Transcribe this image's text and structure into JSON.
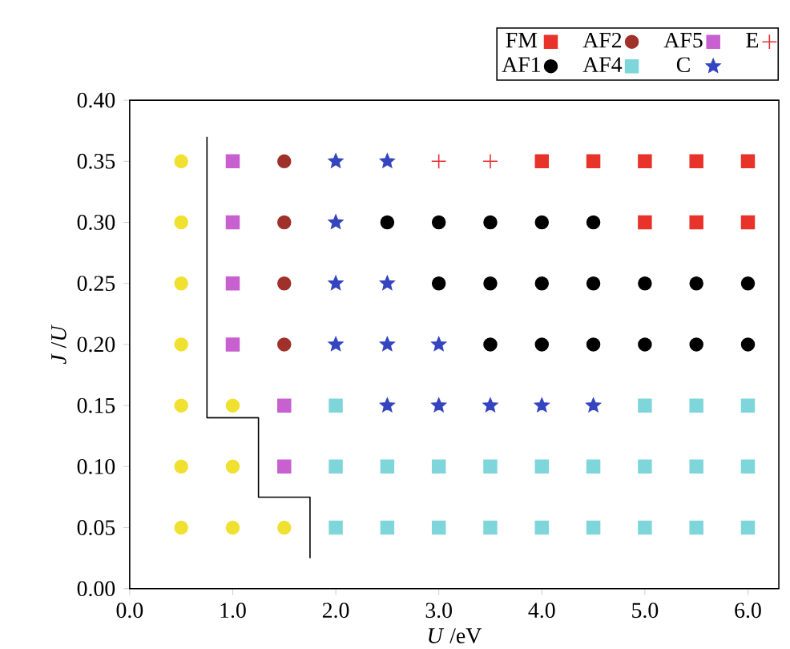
{
  "chart_data": {
    "type": "scatter",
    "xlabel": "*U* /eV",
    "ylabel": "*J* /*U*",
    "legend": "top",
    "xlim": [
      0,
      6.3
    ],
    "ylim": [
      0,
      0.4
    ],
    "xticks": [
      {
        "value": 0,
        "label": "0.0"
      },
      {
        "value": 1,
        "label": "1.0"
      },
      {
        "value": 2,
        "label": "2.0"
      },
      {
        "value": 3,
        "label": "3.0"
      },
      {
        "value": 4,
        "label": "4.0"
      },
      {
        "value": 5,
        "label": "5.0"
      },
      {
        "value": 6,
        "label": "6.0"
      }
    ],
    "yticks": [
      {
        "value": 0,
        "label": "0.00"
      },
      {
        "value": 0.05,
        "label": "0.05"
      },
      {
        "value": 0.1,
        "label": "0.10"
      },
      {
        "value": 0.15,
        "label": "0.15"
      },
      {
        "value": 0.2,
        "label": "0.20"
      },
      {
        "value": 0.25,
        "label": "0.25"
      },
      {
        "value": 0.3,
        "label": "0.30"
      },
      {
        "value": 0.35,
        "label": "0.35"
      },
      {
        "value": 0.4,
        "label": "0.40"
      }
    ],
    "series": [
      {
        "name": "FM",
        "color": "#e8332a",
        "marker": "square",
        "x": [
          4.0,
          4.5,
          5.0,
          5.5,
          6.0,
          5.0,
          5.5,
          6.0
        ],
        "values": [
          0.35,
          0.35,
          0.35,
          0.35,
          0.35,
          0.3,
          0.3,
          0.3
        ]
      },
      {
        "name": "AF2",
        "color": "#a0302a",
        "marker": "circle",
        "x": [
          1.5,
          1.5,
          1.5,
          1.5
        ],
        "values": [
          0.35,
          0.3,
          0.25,
          0.2
        ]
      },
      {
        "name": "AF5",
        "color": "#c860d0",
        "marker": "square",
        "x": [
          1.0,
          1.0,
          1.0,
          1.0,
          1.5,
          1.5
        ],
        "values": [
          0.35,
          0.3,
          0.25,
          0.2,
          0.15,
          0.1
        ]
      },
      {
        "name": "E",
        "color": "#e83030",
        "marker": "cross",
        "x": [
          3.0,
          3.5
        ],
        "values": [
          0.35,
          0.35
        ]
      },
      {
        "name": "AF1",
        "color": "#000000",
        "marker": "circle",
        "x": [
          2.5,
          3.0,
          3.5,
          4.0,
          4.5,
          3.0,
          3.5,
          4.0,
          4.5,
          5.0,
          5.5,
          6.0,
          3.5,
          4.0,
          4.5,
          5.0,
          5.5,
          6.0
        ],
        "values": [
          0.3,
          0.3,
          0.3,
          0.3,
          0.3,
          0.25,
          0.25,
          0.25,
          0.25,
          0.25,
          0.25,
          0.25,
          0.2,
          0.2,
          0.2,
          0.2,
          0.2,
          0.2
        ]
      },
      {
        "name": "AF4",
        "color": "#7fd6da",
        "marker": "square",
        "x": [
          2.0,
          5.0,
          5.5,
          6.0,
          2.0,
          2.5,
          3.0,
          3.5,
          4.0,
          4.5,
          5.0,
          5.5,
          6.0,
          2.0,
          2.5,
          3.0,
          3.5,
          4.0,
          4.5,
          5.0,
          5.5,
          6.0
        ],
        "values": [
          0.15,
          0.15,
          0.15,
          0.15,
          0.1,
          0.1,
          0.1,
          0.1,
          0.1,
          0.1,
          0.1,
          0.1,
          0.1,
          0.05,
          0.05,
          0.05,
          0.05,
          0.05,
          0.05,
          0.05,
          0.05,
          0.05
        ]
      },
      {
        "name": "C",
        "color": "#3545c0",
        "marker": "star",
        "x": [
          2.0,
          2.5,
          2.0,
          2.0,
          2.5,
          2.0,
          2.5,
          3.0,
          2.5,
          3.0,
          3.5,
          4.0,
          4.5
        ],
        "values": [
          0.35,
          0.35,
          0.3,
          0.25,
          0.25,
          0.2,
          0.2,
          0.2,
          0.15,
          0.15,
          0.15,
          0.15,
          0.15
        ]
      },
      {
        "color": "#f0e030",
        "marker": "circle",
        "x": [
          0.5,
          0.5,
          0.5,
          0.5,
          0.5,
          0.5,
          0.5,
          1.0,
          1.0,
          1.0,
          1.5
        ],
        "values": [
          0.35,
          0.3,
          0.25,
          0.2,
          0.15,
          0.1,
          0.05,
          0.15,
          0.1,
          0.05,
          0.05
        ]
      },
      {
        "type": "line",
        "color": "#000000",
        "marker": "none",
        "x": [
          0.75,
          0.75,
          1.25,
          1.25,
          1.75,
          1.75
        ],
        "values": [
          0.37,
          0.14,
          0.14,
          0.075,
          0.075,
          0.025
        ]
      }
    ]
  }
}
